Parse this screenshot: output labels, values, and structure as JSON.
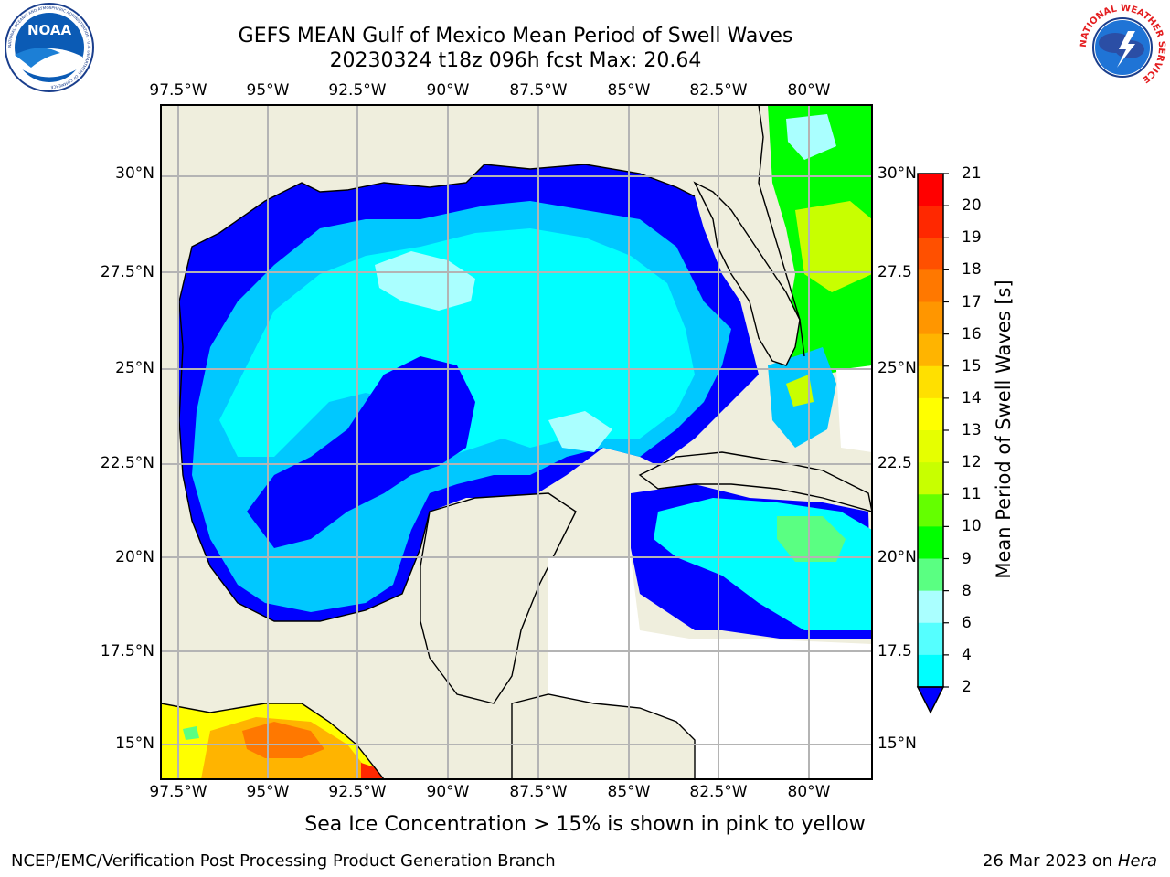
{
  "header": {
    "title_line1": "GEFS MEAN Gulf of Mexico Mean Period of Swell Waves",
    "title_line2": "20230324 t18z 096h fcst   Max: 20.64"
  },
  "logos": {
    "left": "NOAA",
    "left_ring_text": "NATIONAL OCEANIC AND ATMOSPHERIC ADMINISTRATION · U.S. DEPARTMENT OF COMMERCE",
    "right_ring_text": "NATIONAL WEATHER SERVICE"
  },
  "map": {
    "lon_labels": [
      "97.5°W",
      "95°W",
      "92.5°W",
      "90°W",
      "87.5°W",
      "85°W",
      "82.5°W",
      "80°W"
    ],
    "lat_labels": [
      "30°N",
      "27.5°N",
      "25°N",
      "22.5°N",
      "20°N",
      "17.5°N",
      "15°N"
    ],
    "right_lat_labels": [
      "30°N",
      "27.5",
      "25°N",
      "22.5",
      "20°N",
      "17.5",
      "15°N"
    ],
    "land_color": "#efeedd",
    "no_data_color": "#ffffff",
    "grid_color": "#b4b4b4"
  },
  "colorbar": {
    "title": "Mean Period of Swell Waves [s]",
    "levels": [
      "21",
      "20",
      "19",
      "18",
      "17",
      "16",
      "15",
      "14",
      "13",
      "12",
      "11",
      "10",
      "9",
      "8",
      "6",
      "4",
      "2"
    ],
    "colors": [
      "#ff0000",
      "#ff2800",
      "#ff5000",
      "#ff7800",
      "#ff9600",
      "#ffb400",
      "#ffe000",
      "#ffff00",
      "#e6ff00",
      "#c8ff00",
      "#64ff00",
      "#00ff00",
      "#5aff82",
      "#aaffff",
      "#55ffff",
      "#00ffff",
      "#00c8ff",
      "#0000ff"
    ]
  },
  "footer": {
    "ice_note": "Sea Ice Concentration > 15% is shown in pink to yellow",
    "left": "NCEP/EMC/Verification Post Processing Product Generation Branch",
    "right_date": "26 Mar 2023 on",
    "right_host": "Hera"
  }
}
